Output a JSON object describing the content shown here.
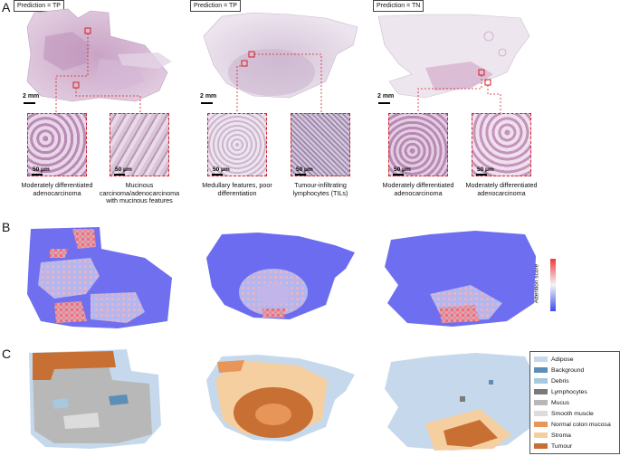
{
  "panels": {
    "a": "A",
    "b": "B",
    "c": "C"
  },
  "predictions": [
    "Prediction = TP",
    "Prediction = TP",
    "Prediction = TN"
  ],
  "scale_slide": "2 mm",
  "scale_zoom": "50 μm",
  "captions": [
    "Moderately differentiated adenocarcinoma",
    "Mucinous carcinoma/adenocarcinoma with mucinous features",
    "Medullary features, poor differentiation",
    "Tumour-infiltrating lymphocytes (TILs)",
    "Moderately differentiated adenocarcinoma",
    "Moderately differentiated adenocarcinoma"
  ],
  "colorbar_label": "Attention score",
  "legend": [
    {
      "label": "Adipose",
      "color": "#c6d9ec"
    },
    {
      "label": "Background",
      "color": "#5b8fb8"
    },
    {
      "label": "Debris",
      "color": "#a8c8e0"
    },
    {
      "label": "Lymphocytes",
      "color": "#7a7a7a"
    },
    {
      "label": "Mucus",
      "color": "#b8b8b8"
    },
    {
      "label": "Smooth muscle",
      "color": "#dcdcdc"
    },
    {
      "label": "Normal colon mucosa",
      "color": "#e8955a"
    },
    {
      "label": "Stroma",
      "color": "#f5cfa0"
    },
    {
      "label": "Tumour",
      "color": "#c87034"
    }
  ]
}
